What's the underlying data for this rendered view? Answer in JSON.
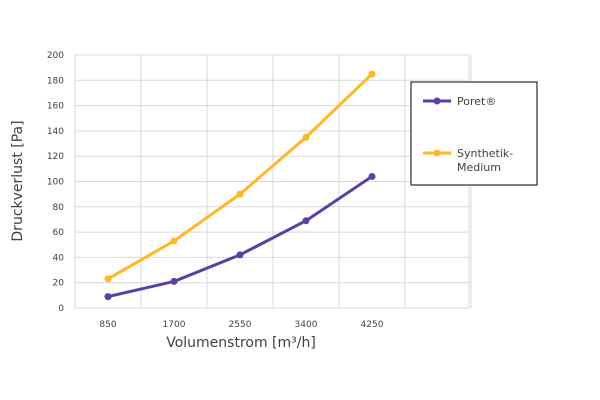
{
  "chart_data": {
    "type": "line",
    "xlabel": "Volumenstrom [m³/h]",
    "ylabel": "Druckverlust [Pa]",
    "categories": [
      "850",
      "1700",
      "2550",
      "3400",
      "4250"
    ],
    "ylim": [
      0,
      200
    ],
    "yticks": [
      "0",
      "20",
      "40",
      "60",
      "80",
      "100",
      "120",
      "140",
      "160",
      "180",
      "200"
    ],
    "grid": true,
    "legend": "right",
    "series": [
      {
        "name": "Poret®",
        "color": "#5b3fa5",
        "values": [
          9,
          21,
          42,
          69,
          104
        ]
      },
      {
        "name": "Synthetik-Medium",
        "color": "#fdb827",
        "values": [
          23,
          53,
          90,
          135,
          185
        ]
      }
    ]
  }
}
